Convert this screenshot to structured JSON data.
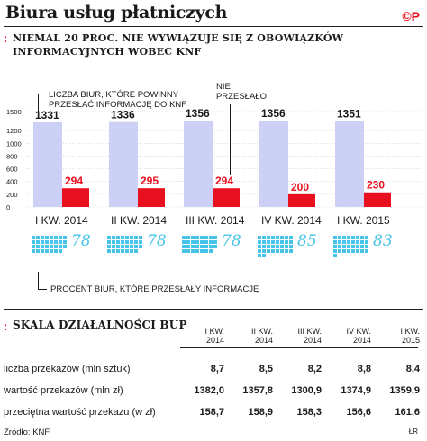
{
  "header": {
    "title": "Biura usług płatniczych",
    "logo": "©P"
  },
  "section1": {
    "bullet": ":",
    "title_line1": "Niemal 20 proc. nie wywiązuje się z obowiązków",
    "title_line2": "informacyjnych wobec KNF",
    "annotation_should": "LICZBA BIUR, KTÓRE POWINNY PRZESŁAĆ INFORMACJĘ DO KNF",
    "annotation_notsent": "NIE PRZESŁAŁO",
    "annotation_pct": "PROCENT BIUR, KTÓRE PRZESŁAŁY INFORMACJĘ"
  },
  "chart_data": {
    "type": "bar",
    "categories": [
      "I KW. 2014",
      "II KW. 2014",
      "III KW. 2014",
      "IV KW. 2014",
      "I KW. 2015"
    ],
    "series": [
      {
        "name": "LICZBA BIUR, KTÓRE POWINNY PRZESŁAĆ INFORMACJĘ DO KNF",
        "values": [
          1331,
          1336,
          1356,
          1356,
          1351
        ],
        "color": "#cdd0f5"
      },
      {
        "name": "NIE PRZESŁAŁO",
        "values": [
          294,
          295,
          294,
          200,
          230
        ],
        "color": "#e8101f"
      }
    ],
    "percent_sent": [
      78,
      78,
      78,
      85,
      83
    ],
    "percent_color": "#45c3e8",
    "yticks": [
      0,
      200,
      400,
      600,
      800,
      1000,
      1200,
      1500
    ],
    "ylim": [
      0,
      1500
    ]
  },
  "section2": {
    "bullet": ":",
    "title": "Skala działalności BUP",
    "columns": [
      "I KW. 2014",
      "II KW. 2014",
      "III KW. 2014",
      "IV KW. 2014",
      "I KW. 2015"
    ],
    "rows": [
      {
        "label": "liczba przekazów (mln sztuk)",
        "values": [
          "8,7",
          "8,5",
          "8,2",
          "8,8",
          "8,4"
        ]
      },
      {
        "label": "wartość przekazów (mln zł)",
        "values": [
          "1382,0",
          "1357,8",
          "1300,9",
          "1374,9",
          "1359,9"
        ]
      },
      {
        "label": "przeciętna wartość przekazu (w zł)",
        "values": [
          "158,7",
          "158,9",
          "158,3",
          "156,6",
          "161,6"
        ]
      }
    ]
  },
  "footer": {
    "source": "Źródło: KNF",
    "credit": "ŁR"
  }
}
